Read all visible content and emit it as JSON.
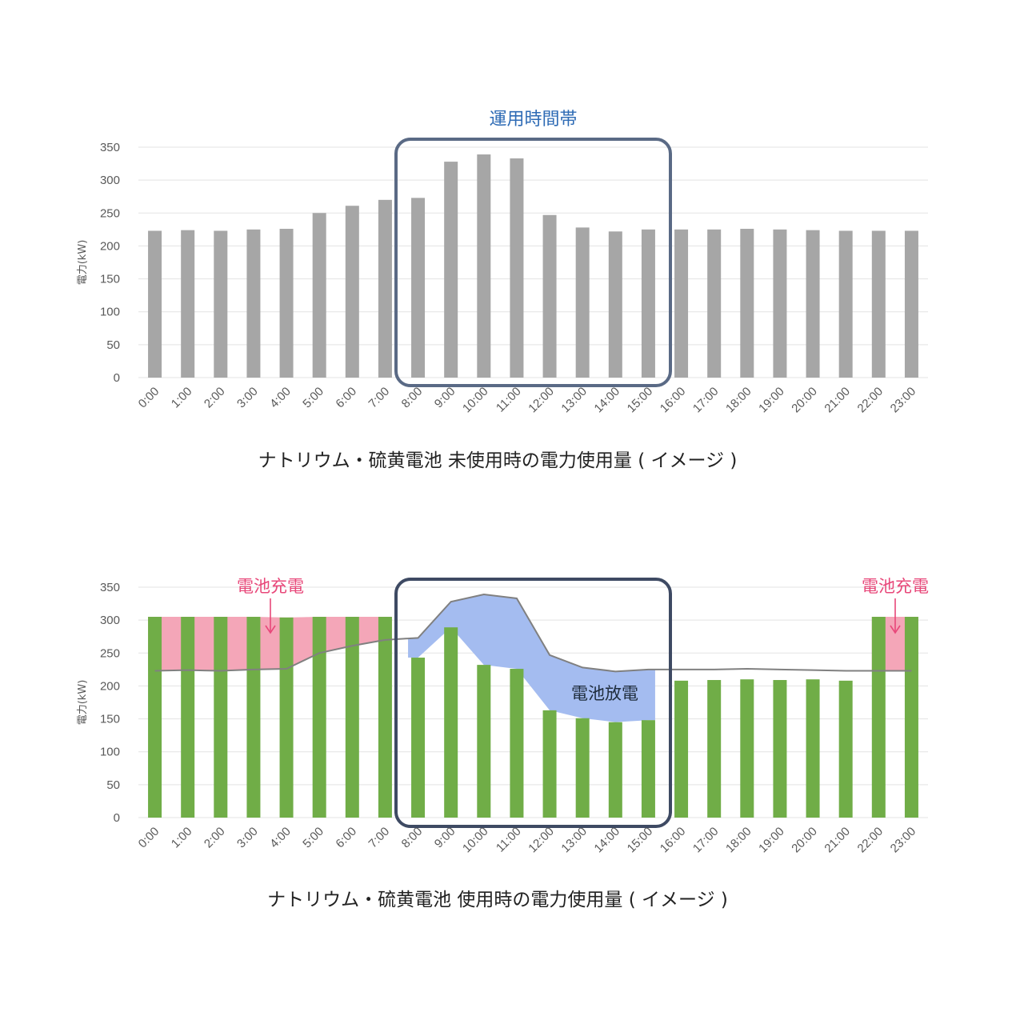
{
  "chart_data": [
    {
      "type": "bar",
      "title": "ナトリウム・硫黄電池 未使用時の電力使用量 ( イメージ )",
      "ylabel": "電力(kW)",
      "ylim": [
        0,
        350
      ],
      "yticks": [
        "0",
        "50",
        "100",
        "150",
        "200",
        "250",
        "300",
        "350"
      ],
      "categories": [
        "0:00",
        "1:00",
        "2:00",
        "3:00",
        "4:00",
        "5:00",
        "6:00",
        "7:00",
        "8:00",
        "9:00",
        "10:00",
        "11:00",
        "12:00",
        "13:00",
        "14:00",
        "15:00",
        "16:00",
        "17:00",
        "18:00",
        "19:00",
        "20:00",
        "21:00",
        "22:00",
        "23:00"
      ],
      "values": [
        223,
        224,
        223,
        225,
        226,
        250,
        261,
        270,
        273,
        328,
        339,
        333,
        247,
        228,
        222,
        225,
        225,
        225,
        226,
        225,
        224,
        223,
        223,
        223
      ],
      "grid": true,
      "bar_color": "#a6a6a6",
      "highlight": {
        "label": "運用時間帯",
        "from": "8:00",
        "to": "15:00",
        "color": "#5a6a85"
      }
    },
    {
      "type": "bar",
      "title": "ナトリウム・硫黄電池 使用時の電力使用量 ( イメージ )",
      "ylabel": "電力(kW)",
      "ylim": [
        0,
        350
      ],
      "yticks": [
        "0",
        "50",
        "100",
        "150",
        "200",
        "250",
        "300",
        "350"
      ],
      "categories": [
        "0:00",
        "1:00",
        "2:00",
        "3:00",
        "4:00",
        "5:00",
        "6:00",
        "7:00",
        "8:00",
        "9:00",
        "10:00",
        "11:00",
        "12:00",
        "13:00",
        "14:00",
        "15:00",
        "16:00",
        "17:00",
        "18:00",
        "19:00",
        "20:00",
        "21:00",
        "22:00",
        "23:00"
      ],
      "values": [
        305,
        305,
        305,
        305,
        304,
        305,
        305,
        305,
        243,
        289,
        232,
        226,
        163,
        151,
        145,
        148,
        208,
        209,
        210,
        209,
        210,
        208,
        305,
        305
      ],
      "baseline": [
        223,
        224,
        223,
        225,
        226,
        250,
        261,
        270,
        273,
        328,
        339,
        333,
        247,
        228,
        222,
        225,
        225,
        225,
        226,
        225,
        224,
        223,
        223,
        223
      ],
      "grid": true,
      "bar_color": "#70ad47",
      "charge_color": "#f4a6b8",
      "discharge_color": "#a4bcf0",
      "line_color": "#808080",
      "highlight": {
        "from": "8:00",
        "to": "15:00",
        "color": "#3e4a63"
      },
      "annotations": {
        "charge_left": "電池充電",
        "charge_right": "電池充電",
        "discharge": "電池放電"
      }
    }
  ]
}
